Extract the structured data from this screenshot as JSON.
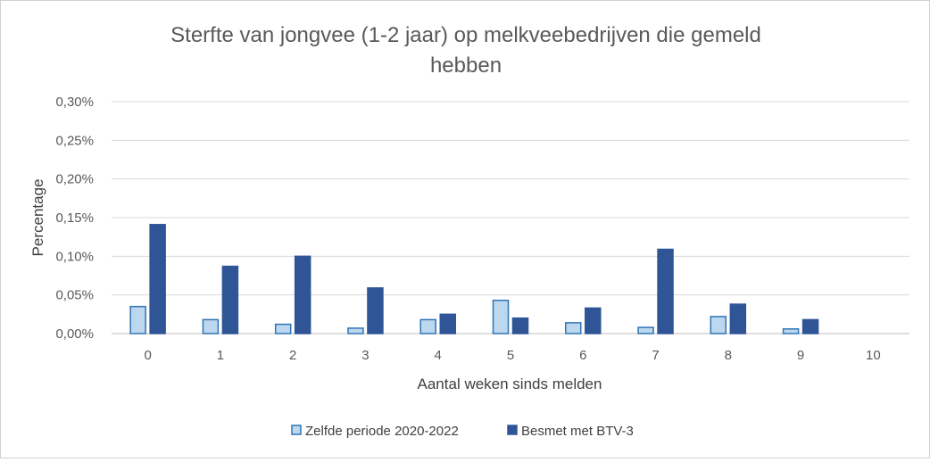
{
  "chart_data": {
    "type": "bar",
    "title_lines": [
      "Sterfte van jongvee (1-2 jaar) op melkveebedrijven  die gemeld",
      "hebben"
    ],
    "xlabel": "Aantal weken sinds melden",
    "ylabel": "Percentage",
    "categories": [
      "0",
      "1",
      "2",
      "3",
      "4",
      "5",
      "6",
      "7",
      "8",
      "9",
      "10"
    ],
    "y_ticks": [
      0,
      0.05,
      0.1,
      0.15,
      0.2,
      0.25,
      0.3
    ],
    "y_tick_labels": [
      "0,00%",
      "0,05%",
      "0,10%",
      "0,15%",
      "0,20%",
      "0,25%",
      "0,30%"
    ],
    "ylim": [
      0,
      0.3
    ],
    "grid": true,
    "legend_position": "bottom",
    "series": [
      {
        "name": "Zelfde periode 2020-2022",
        "color": "#bdd7ee",
        "stroke": "#2e75b6",
        "values": [
          0.035,
          0.018,
          0.012,
          0.007,
          0.018,
          0.043,
          0.014,
          0.008,
          0.022,
          0.006,
          null
        ]
      },
      {
        "name": "Besmet met BTV-3",
        "color": "#2f5597",
        "stroke": "#2f5597",
        "values": [
          0.141,
          0.087,
          0.1,
          0.059,
          0.025,
          0.02,
          0.033,
          0.109,
          0.038,
          0.018,
          null
        ]
      }
    ]
  }
}
